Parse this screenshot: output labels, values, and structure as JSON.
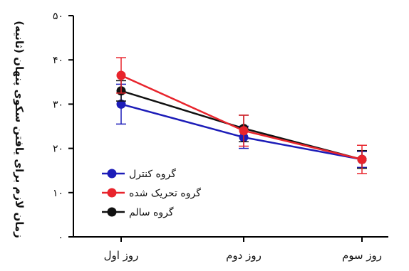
{
  "chart_data": {
    "type": "line",
    "ylabel": "زمان لازم برای یافتن سکوی پنهان (ثانیه)",
    "y_tick_labels": [
      "۰",
      "۱۰",
      "۲۰",
      "۳۰",
      "۴۰",
      "۵۰"
    ],
    "y_ticks": [
      0,
      10,
      20,
      30,
      40,
      50
    ],
    "ylim": [
      0,
      50
    ],
    "categories": [
      "روز اول",
      "روز دوم",
      "روز سوم"
    ],
    "series": [
      {
        "name": "گروه کنترل",
        "color": "#1c1cb8",
        "values": [
          30,
          22.5,
          17.5
        ],
        "errors": [
          4.5,
          2.5,
          1.8
        ]
      },
      {
        "name": "گروه تحریک شده",
        "color": "#e8242c",
        "values": [
          36.5,
          24,
          17.5
        ],
        "errors": [
          4,
          3.5,
          3.2
        ]
      },
      {
        "name": "گروه سالم",
        "color": "#111111",
        "values": [
          33,
          24.5,
          17.5
        ],
        "errors": [
          2.3,
          3,
          2
        ]
      }
    ],
    "legend_position": "bottom-left",
    "grid": false
  }
}
